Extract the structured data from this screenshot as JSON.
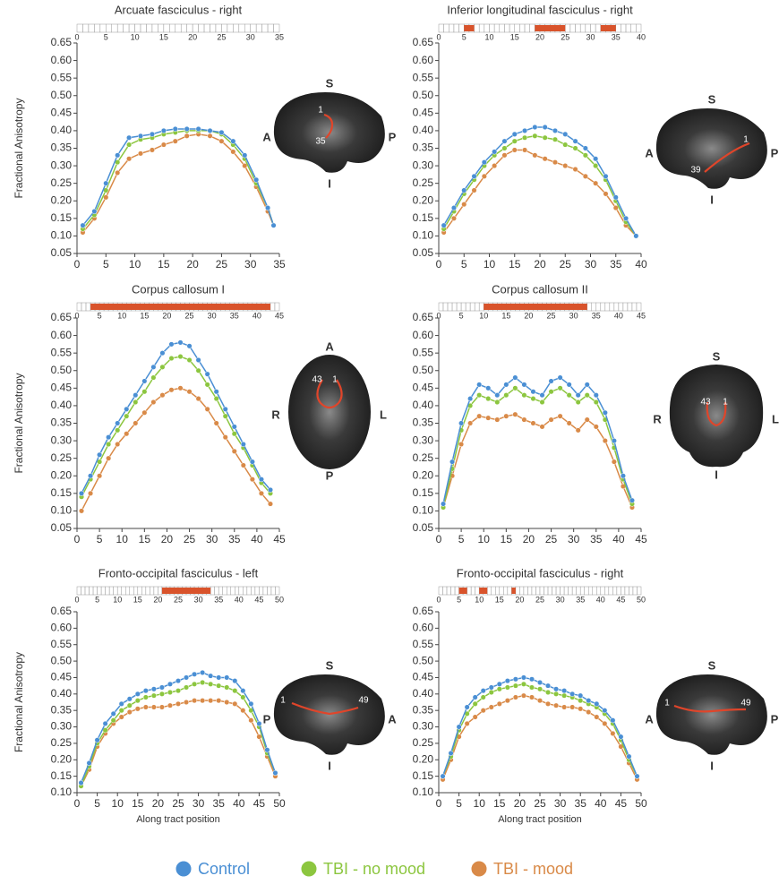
{
  "legend": [
    {
      "name": "Control",
      "color": "#4a8fd4"
    },
    {
      "name": "TBI - no mood",
      "color": "#8cc63f"
    },
    {
      "name": "TBI - mood",
      "color": "#d98a48"
    }
  ],
  "chart_data": [
    {
      "type": "line",
      "title": "Arcuate fasciculus - right",
      "ylabel": "Fractional Anisotropy",
      "x": [
        1,
        3,
        5,
        7,
        9,
        11,
        13,
        15,
        17,
        19,
        21,
        23,
        25,
        27,
        29,
        31,
        33,
        34
      ],
      "series": [
        {
          "values": [
            0.13,
            0.17,
            0.25,
            0.33,
            0.38,
            0.385,
            0.39,
            0.4,
            0.405,
            0.405,
            0.405,
            0.4,
            0.395,
            0.37,
            0.33,
            0.26,
            0.18,
            0.13
          ]
        },
        {
          "values": [
            0.12,
            0.16,
            0.23,
            0.31,
            0.36,
            0.375,
            0.38,
            0.39,
            0.395,
            0.4,
            0.4,
            0.4,
            0.39,
            0.36,
            0.32,
            0.25,
            0.18,
            0.13
          ]
        },
        {
          "values": [
            0.11,
            0.15,
            0.21,
            0.28,
            0.32,
            0.335,
            0.345,
            0.36,
            0.37,
            0.385,
            0.39,
            0.385,
            0.37,
            0.34,
            0.3,
            0.24,
            0.17,
            0.13
          ]
        }
      ],
      "significant_ranges": [],
      "xlim": [
        0,
        35
      ],
      "xticks": [
        0,
        5,
        10,
        15,
        20,
        25,
        30,
        35
      ],
      "ylim": [
        0.05,
        0.65
      ],
      "yticks": [
        0.05,
        {
          "value": 0.1,
          "label": "0.10"
        },
        0.15,
        {
          "value": 0.2,
          "label": "0.20"
        },
        0.25,
        {
          "value": 0.3,
          "label": "0.30"
        },
        0.35,
        {
          "value": 0.4,
          "label": "0.40"
        },
        0.45,
        {
          "value": 0.5,
          "label": "0.50"
        },
        0.55,
        {
          "value": 0.6,
          "label": "0.60"
        },
        0.65
      ],
      "brain": {
        "top": "S",
        "bottom": "I",
        "left": "A",
        "right": "P",
        "start": 1,
        "end": 35
      }
    },
    {
      "type": "line",
      "title": "Inferior longitudinal fasciculus - right",
      "x": [
        1,
        3,
        5,
        7,
        9,
        11,
        13,
        15,
        17,
        19,
        21,
        23,
        25,
        27,
        29,
        31,
        33,
        35,
        37,
        39
      ],
      "series": [
        {
          "values": [
            0.13,
            0.18,
            0.23,
            0.27,
            0.31,
            0.34,
            0.37,
            0.39,
            0.4,
            0.41,
            0.41,
            0.4,
            0.39,
            0.37,
            0.35,
            0.32,
            0.27,
            0.21,
            0.15,
            0.1
          ]
        },
        {
          "values": [
            0.12,
            0.17,
            0.22,
            0.26,
            0.3,
            0.33,
            0.35,
            0.37,
            0.38,
            0.385,
            0.38,
            0.375,
            0.36,
            0.35,
            0.33,
            0.3,
            0.26,
            0.2,
            0.14,
            0.1
          ]
        },
        {
          "values": [
            0.11,
            0.15,
            0.19,
            0.23,
            0.27,
            0.3,
            0.33,
            0.345,
            0.345,
            0.33,
            0.32,
            0.31,
            0.3,
            0.29,
            0.27,
            0.25,
            0.22,
            0.18,
            0.13,
            0.1
          ]
        }
      ],
      "significant_ranges": [
        [
          5,
          7
        ],
        [
          19,
          25
        ],
        [
          32,
          35
        ]
      ],
      "xlim": [
        0,
        40
      ],
      "xticks": [
        0,
        5,
        10,
        15,
        20,
        25,
        30,
        35,
        40
      ],
      "ylim": [
        0.05,
        0.65
      ],
      "yticks": [
        0.05,
        {
          "value": 0.1,
          "label": "0.10"
        },
        0.15,
        {
          "value": 0.2,
          "label": "0.20"
        },
        0.25,
        {
          "value": 0.3,
          "label": "0.30"
        },
        0.35,
        {
          "value": 0.4,
          "label": "0.40"
        },
        0.45,
        {
          "value": 0.5,
          "label": "0.50"
        },
        0.55,
        {
          "value": 0.6,
          "label": "0.60"
        },
        0.65
      ],
      "brain": {
        "top": "S",
        "bottom": "I",
        "left": "A",
        "right": "P",
        "start": 1,
        "end": 39
      }
    },
    {
      "type": "line",
      "title": "Corpus callosum I",
      "ylabel": "Fractional Anisotropy",
      "x": [
        1,
        3,
        5,
        7,
        9,
        11,
        13,
        15,
        17,
        19,
        21,
        23,
        25,
        27,
        29,
        31,
        33,
        35,
        37,
        39,
        41,
        43
      ],
      "series": [
        {
          "values": [
            0.15,
            0.2,
            0.26,
            0.31,
            0.35,
            0.39,
            0.43,
            0.47,
            0.51,
            0.55,
            0.575,
            0.58,
            0.57,
            0.53,
            0.49,
            0.44,
            0.39,
            0.34,
            0.29,
            0.24,
            0.19,
            0.16
          ]
        },
        {
          "values": [
            0.14,
            0.19,
            0.24,
            0.29,
            0.33,
            0.37,
            0.41,
            0.44,
            0.48,
            0.51,
            0.535,
            0.54,
            0.53,
            0.5,
            0.46,
            0.42,
            0.37,
            0.32,
            0.28,
            0.23,
            0.18,
            0.15
          ]
        },
        {
          "values": [
            0.1,
            0.15,
            0.2,
            0.25,
            0.29,
            0.32,
            0.35,
            0.38,
            0.41,
            0.43,
            0.445,
            0.45,
            0.44,
            0.42,
            0.39,
            0.35,
            0.31,
            0.27,
            0.23,
            0.19,
            0.15,
            0.12
          ]
        }
      ],
      "significant_ranges": [
        [
          3,
          43
        ]
      ],
      "xlim": [
        0,
        45
      ],
      "xticks": [
        0,
        5,
        10,
        15,
        20,
        25,
        30,
        35,
        40,
        45
      ],
      "ylim": [
        0.05,
        0.65
      ],
      "yticks": [
        0.05,
        {
          "value": 0.1,
          "label": "0.10"
        },
        0.15,
        {
          "value": 0.2,
          "label": "0.20"
        },
        0.25,
        {
          "value": 0.3,
          "label": "0.30"
        },
        0.35,
        {
          "value": 0.4,
          "label": "0.40"
        },
        0.45,
        {
          "value": 0.5,
          "label": "0.50"
        },
        0.55,
        {
          "value": 0.6,
          "label": "0.60"
        },
        0.65
      ],
      "brain": {
        "top": "A",
        "bottom": "P",
        "left": "R",
        "right": "L",
        "start": 1,
        "end": 43
      }
    },
    {
      "type": "line",
      "title": "Corpus callosum II",
      "x": [
        1,
        3,
        5,
        7,
        9,
        11,
        13,
        15,
        17,
        19,
        21,
        23,
        25,
        27,
        29,
        31,
        33,
        35,
        37,
        39,
        41,
        43
      ],
      "series": [
        {
          "values": [
            0.12,
            0.24,
            0.35,
            0.42,
            0.46,
            0.45,
            0.43,
            0.46,
            0.48,
            0.46,
            0.44,
            0.43,
            0.47,
            0.48,
            0.46,
            0.43,
            0.46,
            0.43,
            0.38,
            0.3,
            0.2,
            0.13
          ]
        },
        {
          "values": [
            0.11,
            0.22,
            0.33,
            0.4,
            0.43,
            0.42,
            0.41,
            0.43,
            0.45,
            0.43,
            0.42,
            0.41,
            0.44,
            0.45,
            0.43,
            0.41,
            0.43,
            0.41,
            0.36,
            0.28,
            0.19,
            0.12
          ]
        },
        {
          "values": [
            0.11,
            0.2,
            0.29,
            0.35,
            0.37,
            0.365,
            0.36,
            0.37,
            0.375,
            0.36,
            0.35,
            0.34,
            0.36,
            0.37,
            0.35,
            0.33,
            0.36,
            0.34,
            0.3,
            0.24,
            0.17,
            0.11
          ]
        }
      ],
      "significant_ranges": [
        [
          10,
          33
        ]
      ],
      "xlim": [
        0,
        45
      ],
      "xticks": [
        0,
        5,
        10,
        15,
        20,
        25,
        30,
        35,
        40,
        45
      ],
      "ylim": [
        0.05,
        0.65
      ],
      "yticks": [
        0.05,
        {
          "value": 0.1,
          "label": "0.10"
        },
        0.15,
        {
          "value": 0.2,
          "label": "0.20"
        },
        0.25,
        {
          "value": 0.3,
          "label": "0.30"
        },
        0.35,
        {
          "value": 0.4,
          "label": "0.40"
        },
        0.45,
        {
          "value": 0.5,
          "label": "0.50"
        },
        0.55,
        {
          "value": 0.6,
          "label": "0.60"
        },
        0.65
      ],
      "brain": {
        "top": "S",
        "bottom": "I",
        "left": "R",
        "right": "L",
        "start": 1,
        "end": 43
      }
    },
    {
      "type": "line",
      "title": "Fronto-occipital fasciculus - left",
      "ylabel": "Fractional Anisotropy",
      "xlabel": "Along tract position",
      "x": [
        1,
        3,
        5,
        7,
        9,
        11,
        13,
        15,
        17,
        19,
        21,
        23,
        25,
        27,
        29,
        31,
        33,
        35,
        37,
        39,
        41,
        43,
        45,
        47,
        49
      ],
      "series": [
        {
          "values": [
            0.13,
            0.19,
            0.26,
            0.31,
            0.34,
            0.37,
            0.385,
            0.4,
            0.41,
            0.415,
            0.42,
            0.43,
            0.44,
            0.45,
            0.46,
            0.465,
            0.455,
            0.45,
            0.45,
            0.44,
            0.41,
            0.37,
            0.31,
            0.23,
            0.16
          ]
        },
        {
          "values": [
            0.12,
            0.18,
            0.25,
            0.29,
            0.32,
            0.35,
            0.365,
            0.38,
            0.39,
            0.395,
            0.4,
            0.405,
            0.41,
            0.42,
            0.43,
            0.435,
            0.43,
            0.425,
            0.42,
            0.41,
            0.39,
            0.35,
            0.3,
            0.22,
            0.16
          ]
        },
        {
          "values": [
            0.12,
            0.17,
            0.24,
            0.28,
            0.31,
            0.33,
            0.345,
            0.355,
            0.36,
            0.36,
            0.36,
            0.365,
            0.37,
            0.375,
            0.38,
            0.38,
            0.38,
            0.38,
            0.375,
            0.37,
            0.35,
            0.32,
            0.27,
            0.21,
            0.15
          ]
        }
      ],
      "significant_ranges": [
        [
          21,
          33
        ]
      ],
      "xlim": [
        0,
        50
      ],
      "xticks": [
        0,
        5,
        10,
        15,
        20,
        25,
        30,
        35,
        40,
        45,
        50
      ],
      "ylim": [
        0.1,
        0.65
      ],
      "yticks": [
        {
          "value": 0.1,
          "label": "0.10"
        },
        0.15,
        {
          "value": 0.2,
          "label": "0.20"
        },
        0.25,
        {
          "value": 0.3,
          "label": "0.30"
        },
        0.35,
        {
          "value": 0.4,
          "label": "0.40"
        },
        0.45,
        {
          "value": 0.5,
          "label": "0.50"
        },
        0.55,
        {
          "value": 0.6,
          "label": "0.60"
        },
        0.65
      ],
      "brain": {
        "top": "S",
        "bottom": "I",
        "left": "P",
        "right": "A",
        "start": 1,
        "end": 49
      }
    },
    {
      "type": "line",
      "title": "Fronto-occipital fasciculus - right",
      "xlabel": "Along tract position",
      "x": [
        1,
        3,
        5,
        7,
        9,
        11,
        13,
        15,
        17,
        19,
        21,
        23,
        25,
        27,
        29,
        31,
        33,
        35,
        37,
        39,
        41,
        43,
        45,
        47,
        49
      ],
      "series": [
        {
          "values": [
            0.15,
            0.22,
            0.3,
            0.36,
            0.39,
            0.41,
            0.42,
            0.43,
            0.44,
            0.445,
            0.45,
            0.445,
            0.435,
            0.425,
            0.415,
            0.41,
            0.4,
            0.395,
            0.38,
            0.37,
            0.35,
            0.32,
            0.27,
            0.21,
            0.15
          ]
        },
        {
          "values": [
            0.15,
            0.21,
            0.29,
            0.34,
            0.37,
            0.39,
            0.405,
            0.415,
            0.42,
            0.425,
            0.43,
            0.42,
            0.415,
            0.405,
            0.4,
            0.395,
            0.39,
            0.38,
            0.37,
            0.36,
            0.34,
            0.31,
            0.26,
            0.2,
            0.15
          ]
        },
        {
          "values": [
            0.14,
            0.2,
            0.27,
            0.31,
            0.33,
            0.35,
            0.36,
            0.37,
            0.38,
            0.39,
            0.395,
            0.39,
            0.38,
            0.37,
            0.365,
            0.36,
            0.36,
            0.355,
            0.345,
            0.33,
            0.31,
            0.28,
            0.24,
            0.19,
            0.14
          ]
        }
      ],
      "significant_ranges": [
        [
          5,
          7
        ],
        [
          10,
          12
        ],
        [
          18,
          19
        ]
      ],
      "xlim": [
        0,
        50
      ],
      "xticks": [
        0,
        5,
        10,
        15,
        20,
        25,
        30,
        35,
        40,
        45,
        50
      ],
      "ylim": [
        0.1,
        0.65
      ],
      "yticks": [
        {
          "value": 0.1,
          "label": "0.10"
        },
        0.15,
        {
          "value": 0.2,
          "label": "0.20"
        },
        0.25,
        {
          "value": 0.3,
          "label": "0.30"
        },
        0.35,
        {
          "value": 0.4,
          "label": "0.40"
        },
        0.45,
        {
          "value": 0.5,
          "label": "0.50"
        },
        0.55,
        {
          "value": 0.6,
          "label": "0.60"
        },
        0.65
      ],
      "brain": {
        "top": "S",
        "bottom": "I",
        "left": "A",
        "right": "P",
        "start": 1,
        "end": 49
      }
    }
  ]
}
